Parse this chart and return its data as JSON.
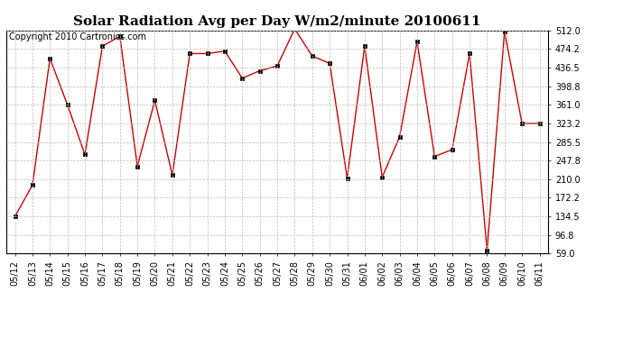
{
  "title": "Solar Radiation Avg per Day W/m2/minute 20100611",
  "copyright_text": "Copyright 2010 Cartronics.com",
  "dates": [
    "05/12",
    "05/13",
    "05/14",
    "05/15",
    "05/16",
    "05/17",
    "05/18",
    "05/19",
    "05/20",
    "05/21",
    "05/22",
    "05/23",
    "05/24",
    "05/25",
    "05/26",
    "05/27",
    "05/28",
    "05/29",
    "05/30",
    "05/31",
    "06/01",
    "06/02",
    "06/03",
    "06/04",
    "06/05",
    "06/06",
    "06/07",
    "06/08",
    "06/09",
    "06/10",
    "06/11"
  ],
  "values": [
    134.5,
    198.0,
    455.0,
    361.0,
    260.0,
    480.0,
    500.0,
    236.0,
    370.0,
    218.0,
    465.0,
    465.0,
    470.0,
    415.0,
    430.0,
    440.0,
    515.0,
    460.0,
    445.0,
    212.0,
    480.0,
    214.0,
    296.0,
    489.0,
    256.0,
    270.0,
    465.0,
    65.0,
    510.0,
    323.0,
    323.0
  ],
  "line_color": "#cc0000",
  "marker_color": "#000000",
  "bg_color": "#ffffff",
  "grid_color": "#bbbbbb",
  "yticks": [
    59.0,
    96.8,
    134.5,
    172.2,
    210.0,
    247.8,
    285.5,
    323.2,
    361.0,
    398.8,
    436.5,
    474.2,
    512.0
  ],
  "ylim": [
    59.0,
    512.0
  ],
  "title_fontsize": 11,
  "tick_fontsize": 7,
  "copyright_fontsize": 7
}
